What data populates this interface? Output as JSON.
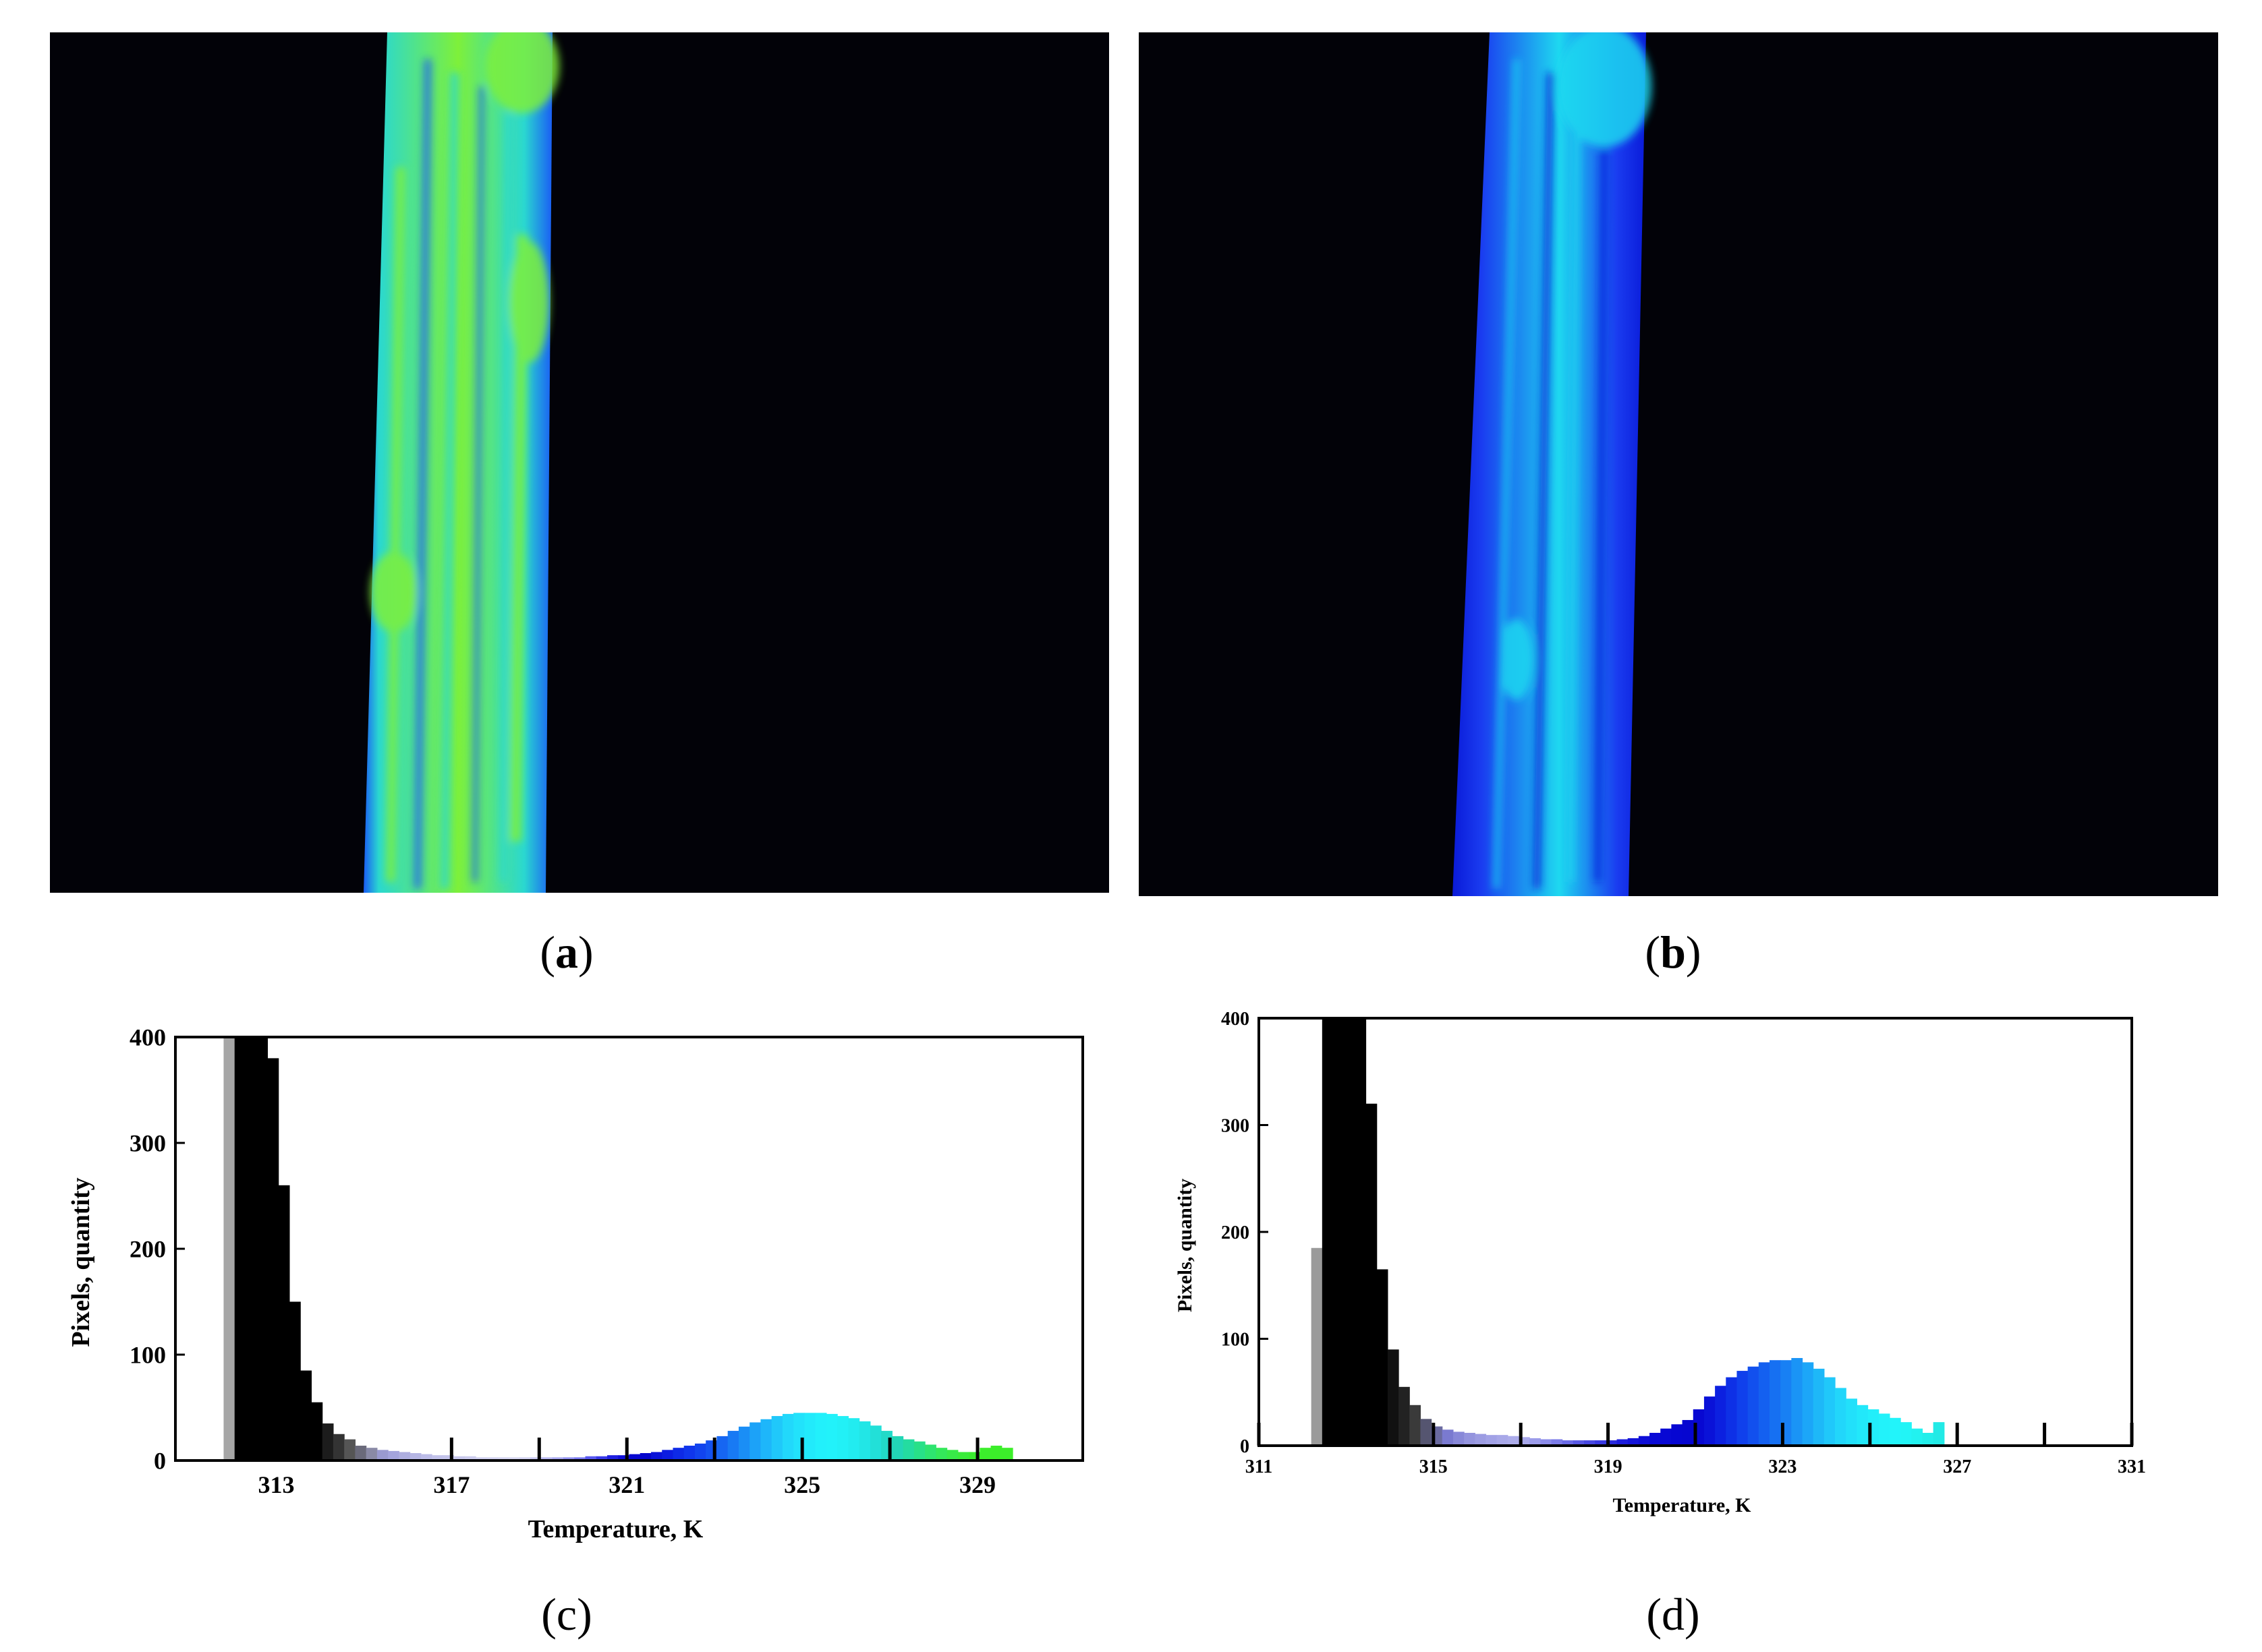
{
  "panels": {
    "a": {
      "open": "(",
      "letter": "a",
      "close": ")"
    },
    "b": {
      "open": "(",
      "letter": "b",
      "close": ")"
    },
    "c": {
      "open": "(",
      "letter": "c",
      "close": ")"
    },
    "d": {
      "open": "(",
      "letter": "d",
      "close": ")"
    }
  },
  "thermograms": {
    "a": {
      "base_color": "#2ad8d0",
      "highlight_color": "#7ef03a",
      "edge_color": "#1a5cf5"
    },
    "b": {
      "base_color": "#1a3cf0",
      "highlight_color": "#1ed8f0",
      "edge_color": "#0a1ad8"
    }
  },
  "chart_data": [
    {
      "id": "c",
      "type": "bar",
      "title": "",
      "xlabel": "Temperature, K",
      "ylabel": "Pixels, quantity",
      "xlim": [
        310.7,
        331.4
      ],
      "ylim": [
        0,
        400
      ],
      "x_ticks": [
        313,
        317,
        321,
        325,
        329
      ],
      "x_minor_ticks": [
        319,
        323,
        327
      ],
      "y_ticks": [
        0,
        100,
        200,
        300,
        400
      ],
      "bin_width": 0.25,
      "x": [
        311.8,
        312.05,
        312.3,
        312.55,
        312.8,
        313.05,
        313.3,
        313.55,
        313.8,
        314.05,
        314.3,
        314.55,
        314.8,
        315.05,
        315.3,
        315.55,
        315.8,
        316.05,
        316.3,
        316.55,
        316.8,
        317.05,
        317.3,
        317.55,
        317.8,
        318.05,
        318.3,
        318.55,
        318.8,
        319.05,
        319.3,
        319.55,
        319.8,
        320.05,
        320.3,
        320.55,
        320.8,
        321.05,
        321.3,
        321.55,
        321.8,
        322.05,
        322.3,
        322.55,
        322.8,
        323.05,
        323.3,
        323.55,
        323.8,
        324.05,
        324.3,
        324.55,
        324.8,
        325.05,
        325.3,
        325.55,
        325.8,
        326.05,
        326.3,
        326.55,
        326.8,
        327.05,
        327.3,
        327.55,
        327.8,
        328.05,
        328.3,
        328.55,
        328.8,
        329.05,
        329.3,
        329.55
      ],
      "values": [
        400,
        400,
        400,
        400,
        380,
        260,
        150,
        85,
        55,
        35,
        25,
        20,
        14,
        12,
        10,
        9,
        8,
        7,
        6,
        5,
        5,
        4,
        4,
        3,
        3,
        3,
        3,
        3,
        3,
        3,
        3,
        3,
        3,
        4,
        4,
        5,
        5,
        6,
        7,
        8,
        10,
        12,
        14,
        16,
        19,
        23,
        28,
        32,
        36,
        39,
        42,
        44,
        45,
        45,
        45,
        44,
        42,
        40,
        37,
        33,
        28,
        23,
        20,
        18,
        15,
        12,
        10,
        8,
        8,
        12,
        14,
        12
      ],
      "colors": [
        "#a6a6a6",
        "#000000",
        "#000000",
        "#000000",
        "#000000",
        "#000000",
        "#000000",
        "#000000",
        "#000000",
        "#1c1c1c",
        "#333333",
        "#555555",
        "#6a6a7a",
        "#8a8aa6",
        "#9a9ad0",
        "#a4a4dd",
        "#aeaee0",
        "#b6b6e4",
        "#bcbce8",
        "#c2c2ea",
        "#c4c4ea",
        "#c8c8ec",
        "#ccccee",
        "#d0d0ef",
        "#d2d2f0",
        "#d4d4f0",
        "#d6d6f0",
        "#d2d2f0",
        "#c8c8f0",
        "#b8b8f0",
        "#a8a8f0",
        "#9090f0",
        "#7878f0",
        "#5858f0",
        "#3838e8",
        "#2020e0",
        "#1010d8",
        "#0808d0",
        "#0606cc",
        "#0a12d8",
        "#0c1ce0",
        "#0e2ae6",
        "#1036ec",
        "#1244ee",
        "#1452f0",
        "#1666f2",
        "#187af4",
        "#1a8ef6",
        "#1ca2f8",
        "#1eb6fa",
        "#20c8fa",
        "#22d8fb",
        "#22e2fb",
        "#22eafb",
        "#22f0fb",
        "#22f2fa",
        "#22f0f6",
        "#22ecf0",
        "#22e6e6",
        "#22e0d8",
        "#22dac8",
        "#22d6b6",
        "#24dca0",
        "#28e088",
        "#2ee470",
        "#34e85a",
        "#38ea48",
        "#3aec3a",
        "#3aec30",
        "#3cee2c",
        "#3cee2a",
        "#3cee2a"
      ]
    },
    {
      "id": "d",
      "type": "bar",
      "title": "",
      "xlabel": "Temperature, K",
      "ylabel": "Pixels, quantity",
      "xlim": [
        311,
        331
      ],
      "ylim": [
        0,
        400
      ],
      "x_ticks": [
        311,
        315,
        319,
        323,
        327,
        331
      ],
      "x_minor_ticks": [
        313,
        317,
        321,
        325,
        329
      ],
      "y_ticks": [
        0,
        100,
        200,
        300,
        400
      ],
      "bin_width": 0.25,
      "x": [
        312.2,
        312.45,
        312.7,
        312.95,
        313.2,
        313.45,
        313.7,
        313.95,
        314.2,
        314.45,
        314.7,
        314.95,
        315.2,
        315.45,
        315.7,
        315.95,
        316.2,
        316.45,
        316.7,
        316.95,
        317.2,
        317.45,
        317.7,
        317.95,
        318.2,
        318.45,
        318.7,
        318.95,
        319.2,
        319.45,
        319.7,
        319.95,
        320.2,
        320.45,
        320.7,
        320.95,
        321.2,
        321.45,
        321.7,
        321.95,
        322.2,
        322.45,
        322.7,
        322.95,
        323.2,
        323.45,
        323.7,
        323.95,
        324.2,
        324.45,
        324.7,
        324.95,
        325.2,
        325.45,
        325.7,
        325.95,
        326.2,
        326.45
      ],
      "values": [
        185,
        400,
        400,
        400,
        400,
        320,
        165,
        90,
        55,
        38,
        25,
        18,
        15,
        13,
        12,
        11,
        10,
        10,
        9,
        8,
        7,
        6,
        6,
        5,
        5,
        5,
        5,
        5,
        6,
        7,
        9,
        12,
        16,
        20,
        24,
        34,
        46,
        56,
        64,
        70,
        74,
        78,
        80,
        80,
        82,
        78,
        72,
        64,
        54,
        44,
        38,
        34,
        30,
        26,
        22,
        16,
        12,
        22
      ],
      "colors": [
        "#9a9a9a",
        "#000000",
        "#000000",
        "#000000",
        "#000000",
        "#000000",
        "#000000",
        "#111111",
        "#222222",
        "#3a3a3a",
        "#555570",
        "#6a6aa0",
        "#7a7ad0",
        "#8888d8",
        "#9494de",
        "#9c9ce2",
        "#a2a2e6",
        "#a8a8e8",
        "#acacea",
        "#a8a8ea",
        "#9c9cea",
        "#8c8cea",
        "#7c7ce8",
        "#6a6ae6",
        "#5858e4",
        "#4848e2",
        "#3838e0",
        "#2a2ade",
        "#1c1cdc",
        "#1414da",
        "#0e0ed8",
        "#0a0ad6",
        "#0808d4",
        "#0606d2",
        "#0606d0",
        "#0808d2",
        "#0a12d8",
        "#0c20e0",
        "#0e30e6",
        "#1040ec",
        "#1250ee",
        "#1460f0",
        "#1670f2",
        "#1880f4",
        "#1a94f6",
        "#1ca6f8",
        "#1eb8f8",
        "#20c8fa",
        "#22d6fa",
        "#22e0fa",
        "#22e8fa",
        "#22eefa",
        "#22f2fa",
        "#22f4fa",
        "#22f4f6",
        "#22f2f0",
        "#22eeea",
        "#22eae6"
      ]
    }
  ]
}
